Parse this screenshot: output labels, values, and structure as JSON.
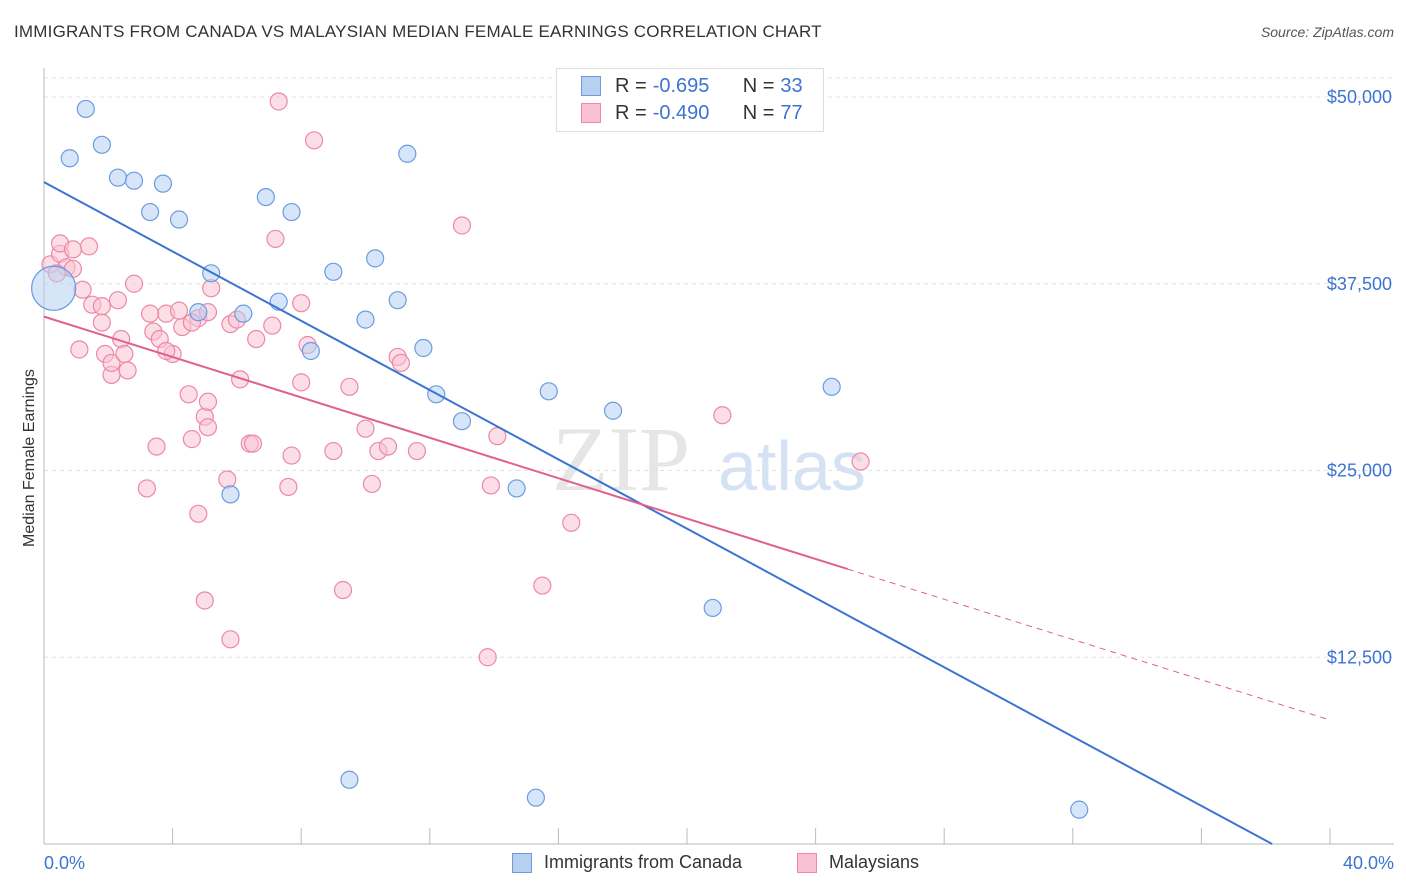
{
  "title": "IMMIGRANTS FROM CANADA VS MALAYSIAN MEDIAN FEMALE EARNINGS CORRELATION CHART",
  "source": "Source: ZipAtlas.com",
  "watermark": {
    "zip": "ZIP",
    "atlas": "atlas"
  },
  "legend": {
    "rows": [
      {
        "r_label": "R =",
        "r_value": "-0.695",
        "n_label": "N =",
        "n_value": "33"
      },
      {
        "r_label": "R =",
        "r_value": "-0.490",
        "n_label": "N =",
        "n_value": "77"
      }
    ]
  },
  "colors": {
    "blue_fill": "#b7d0f2",
    "blue_stroke": "#6b9ce0",
    "blue_line": "#3b74d1",
    "pink_fill": "#f9c2d3",
    "pink_stroke": "#ec88a8",
    "pink_line": "#e0608e",
    "grid": "#e3e3e3",
    "tick_label": "#3b74d1"
  },
  "chart_data": {
    "type": "scatter",
    "title": "IMMIGRANTS FROM CANADA VS MALAYSIAN MEDIAN FEMALE EARNINGS CORRELATION CHART",
    "xlabel": "",
    "ylabel": "Median Female Earnings",
    "xlim": [
      0,
      40
    ],
    "ylim": [
      0,
      50000
    ],
    "x_tick_labels": [
      "0.0%",
      "40.0%"
    ],
    "y_ticks": [
      12500,
      25000,
      37500,
      50000
    ],
    "y_tick_labels": [
      "$12,500",
      "$25,000",
      "$37,500",
      "$50,000"
    ],
    "grid": true,
    "legend_position": "bottom",
    "series": [
      {
        "name": "Immigrants from Canada",
        "color": "#6b9ce0",
        "points": [
          [
            0.3,
            37200
          ],
          [
            1.3,
            49200
          ],
          [
            0.8,
            45900
          ],
          [
            1.8,
            46800
          ],
          [
            2.3,
            44600
          ],
          [
            2.8,
            44400
          ],
          [
            3.7,
            44200
          ],
          [
            3.3,
            42300
          ],
          [
            4.2,
            41800
          ],
          [
            5.2,
            38200
          ],
          [
            6.9,
            43300
          ],
          [
            7.7,
            42300
          ],
          [
            9.0,
            38300
          ],
          [
            10.3,
            39200
          ],
          [
            10.0,
            35100
          ],
          [
            11.0,
            36400
          ],
          [
            7.3,
            36300
          ],
          [
            6.2,
            35500
          ],
          [
            4.8,
            35600
          ],
          [
            8.3,
            33000
          ],
          [
            11.8,
            33200
          ],
          [
            12.2,
            30100
          ],
          [
            13.0,
            28300
          ],
          [
            15.7,
            30300
          ],
          [
            17.7,
            29000
          ],
          [
            24.5,
            30600
          ],
          [
            14.7,
            23800
          ],
          [
            5.8,
            23400
          ],
          [
            20.8,
            15800
          ],
          [
            11.3,
            46200
          ],
          [
            9.5,
            4300
          ],
          [
            15.3,
            3100
          ],
          [
            32.2,
            2300
          ]
        ],
        "trend": {
          "x": [
            0,
            38.2
          ],
          "y": [
            44300,
            0
          ]
        }
      },
      {
        "name": "Malaysians",
        "color": "#ec88a8",
        "points": [
          [
            0.2,
            38800
          ],
          [
            0.5,
            39500
          ],
          [
            0.7,
            38600
          ],
          [
            0.5,
            40200
          ],
          [
            1.4,
            40000
          ],
          [
            0.9,
            39800
          ],
          [
            0.4,
            38200
          ],
          [
            1.2,
            37100
          ],
          [
            1.5,
            36100
          ],
          [
            1.8,
            34900
          ],
          [
            2.3,
            36400
          ],
          [
            2.8,
            37500
          ],
          [
            1.9,
            32800
          ],
          [
            2.1,
            31400
          ],
          [
            2.6,
            31700
          ],
          [
            2.4,
            33800
          ],
          [
            3.4,
            34300
          ],
          [
            3.8,
            35500
          ],
          [
            3.6,
            33800
          ],
          [
            4.0,
            32800
          ],
          [
            4.3,
            34600
          ],
          [
            4.8,
            35200
          ],
          [
            5.1,
            35600
          ],
          [
            5.2,
            37200
          ],
          [
            5.8,
            34800
          ],
          [
            6.1,
            31100
          ],
          [
            6.6,
            33800
          ],
          [
            7.1,
            34700
          ],
          [
            7.2,
            40500
          ],
          [
            8.0,
            36200
          ],
          [
            8.2,
            33400
          ],
          [
            3.3,
            35500
          ],
          [
            4.2,
            35700
          ],
          [
            3.5,
            26600
          ],
          [
            4.5,
            30100
          ],
          [
            5.0,
            28600
          ],
          [
            4.6,
            27100
          ],
          [
            5.1,
            29600
          ],
          [
            5.1,
            27900
          ],
          [
            3.2,
            23800
          ],
          [
            4.8,
            22100
          ],
          [
            5.7,
            24400
          ],
          [
            6.4,
            26800
          ],
          [
            7.7,
            26000
          ],
          [
            7.6,
            23900
          ],
          [
            8.0,
            30900
          ],
          [
            9.5,
            30600
          ],
          [
            9.0,
            26300
          ],
          [
            10.0,
            27800
          ],
          [
            10.4,
            26300
          ],
          [
            10.7,
            26600
          ],
          [
            11.0,
            32600
          ],
          [
            11.1,
            32200
          ],
          [
            11.6,
            26300
          ],
          [
            10.2,
            24100
          ],
          [
            13.9,
            24000
          ],
          [
            13.0,
            41400
          ],
          [
            14.1,
            27300
          ],
          [
            16.4,
            21500
          ],
          [
            21.1,
            28700
          ],
          [
            25.4,
            25600
          ],
          [
            5.0,
            16300
          ],
          [
            5.8,
            13700
          ],
          [
            9.3,
            17000
          ],
          [
            13.8,
            12500
          ],
          [
            15.5,
            17300
          ],
          [
            7.3,
            49700
          ],
          [
            8.4,
            47100
          ],
          [
            1.8,
            36000
          ],
          [
            2.1,
            32200
          ],
          [
            0.9,
            38500
          ],
          [
            1.1,
            33100
          ],
          [
            4.6,
            34900
          ],
          [
            6.0,
            35100
          ],
          [
            2.5,
            32800
          ],
          [
            3.8,
            33000
          ],
          [
            6.5,
            26800
          ]
        ],
        "trend": {
          "x": [
            0,
            25
          ],
          "y": [
            35300,
            18400
          ]
        },
        "trend_dashed": {
          "x": [
            25,
            40
          ],
          "y": [
            18400,
            8300
          ]
        }
      }
    ]
  }
}
